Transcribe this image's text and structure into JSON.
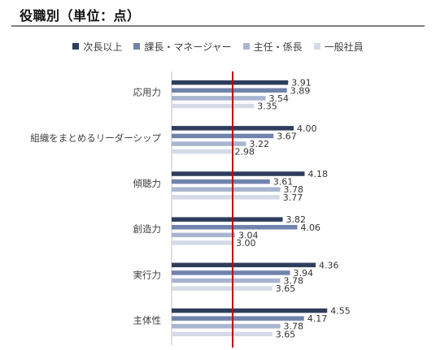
{
  "title": "役職別（単位：点）",
  "colors": [
    "#2e3d5c",
    "#7182ac",
    "#a8b5d0",
    "#d5dae6"
  ],
  "reference_line_color": "#c00000",
  "chart_data": {
    "type": "bar",
    "orientation": "horizontal",
    "categories": [
      "応用力",
      "組織をまとめるリーダーシップ",
      "傾聴力",
      "創造力",
      "実行力",
      "主体性"
    ],
    "series": [
      {
        "name": "次長以上",
        "values": [
          3.91,
          4.0,
          4.18,
          3.82,
          4.36,
          4.55
        ]
      },
      {
        "name": "課長・マネージャー",
        "values": [
          3.89,
          3.67,
          3.61,
          4.06,
          3.94,
          4.17
        ]
      },
      {
        "name": "主任・係長",
        "values": [
          3.54,
          3.22,
          3.78,
          3.04,
          3.78,
          3.78
        ]
      },
      {
        "name": "一般社員",
        "values": [
          3.35,
          2.98,
          3.77,
          3.0,
          3.65,
          3.65
        ]
      }
    ],
    "legend_position": "top",
    "grid": false,
    "reference_line": 3.0
  }
}
